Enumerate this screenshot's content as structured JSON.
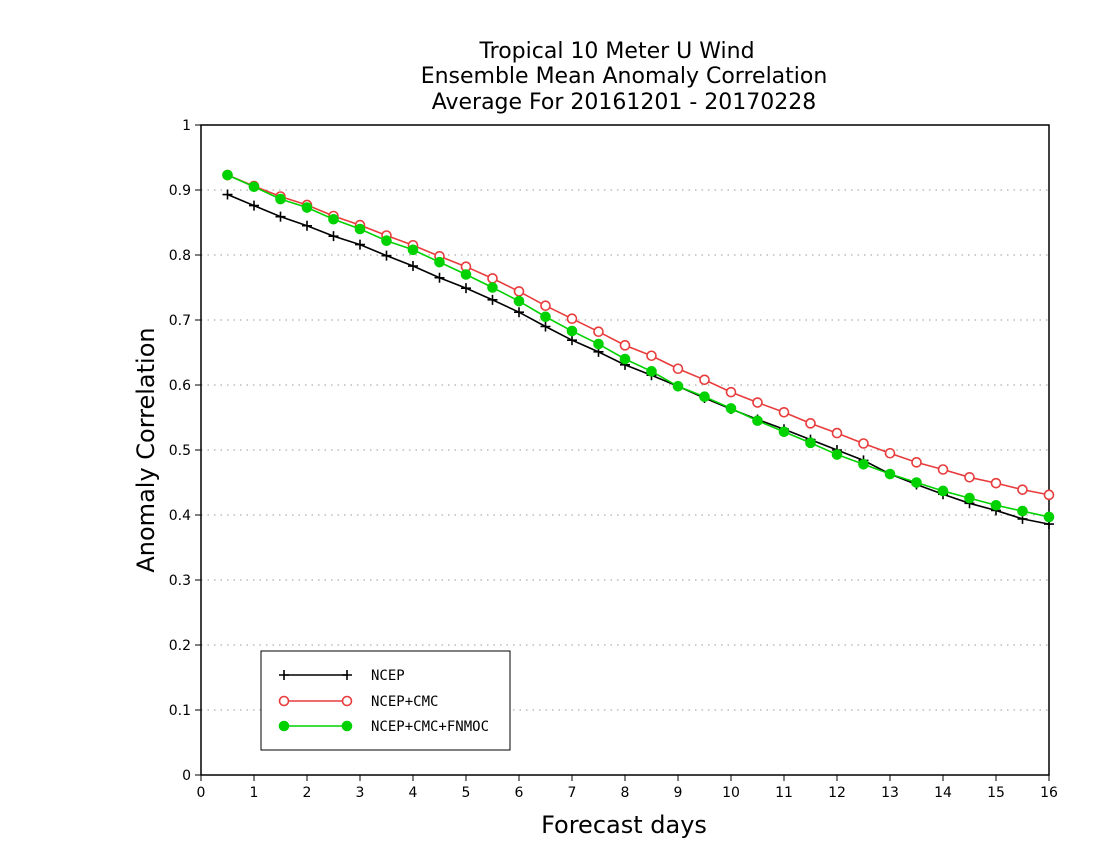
{
  "chart_data": {
    "type": "line",
    "title_lines": [
      "Tropical 10 Meter U Wind",
      "Ensemble Mean Anomaly Correlation",
      "Average For 20161201 - 20170228"
    ],
    "xlabel": "Forecast days",
    "ylabel": "Anomaly Correlation",
    "xlim": [
      0,
      16
    ],
    "ylim": [
      0,
      1
    ],
    "x_ticks": [
      "0",
      "1",
      "2",
      "3",
      "4",
      "5",
      "6",
      "7",
      "8",
      "9",
      "10",
      "11",
      "12",
      "13",
      "14",
      "15",
      "16"
    ],
    "y_ticks": [
      "0",
      "0.1",
      "0.2",
      "0.3",
      "0.4",
      "0.5",
      "0.6",
      "0.7",
      "0.8",
      "0.9",
      "1"
    ],
    "y_tick_values": [
      0,
      0.1,
      0.2,
      0.3,
      0.4,
      0.5,
      0.6,
      0.7,
      0.8,
      0.9,
      1
    ],
    "grid": "horizontal dotted",
    "legend_position": "bottom-left",
    "x": [
      0.5,
      1,
      1.5,
      2,
      2.5,
      3,
      3.5,
      4,
      4.5,
      5,
      5.5,
      6,
      6.5,
      7,
      7.5,
      8,
      8.5,
      9,
      9.5,
      10,
      10.5,
      11,
      11.5,
      12,
      12.5,
      13,
      13.5,
      14,
      14.5,
      15,
      15.5,
      16
    ],
    "series": [
      {
        "name": "NCEP",
        "color": "#000000",
        "marker": "plus",
        "values": [
          0.893,
          0.876,
          0.859,
          0.845,
          0.829,
          0.816,
          0.799,
          0.783,
          0.765,
          0.749,
          0.731,
          0.712,
          0.69,
          0.669,
          0.651,
          0.631,
          0.615,
          0.598,
          0.58,
          0.563,
          0.547,
          0.532,
          0.516,
          0.5,
          0.484,
          0.463,
          0.447,
          0.432,
          0.418,
          0.407,
          0.394,
          0.386
        ]
      },
      {
        "name": "NCEP+CMC",
        "color": "#e83c3c",
        "marker": "open-circle",
        "values": [
          0.923,
          0.906,
          0.89,
          0.877,
          0.86,
          0.846,
          0.83,
          0.815,
          0.798,
          0.782,
          0.764,
          0.744,
          0.722,
          0.702,
          0.682,
          0.661,
          0.645,
          0.625,
          0.608,
          0.589,
          0.573,
          0.558,
          0.541,
          0.526,
          0.51,
          0.495,
          0.481,
          0.47,
          0.458,
          0.449,
          0.439,
          0.431
        ]
      },
      {
        "name": "NCEP+CMC+FNMOC",
        "color": "#00d200",
        "marker": "filled-circle",
        "values": [
          0.923,
          0.905,
          0.886,
          0.873,
          0.855,
          0.84,
          0.822,
          0.808,
          0.789,
          0.77,
          0.75,
          0.729,
          0.705,
          0.683,
          0.663,
          0.64,
          0.621,
          0.598,
          0.582,
          0.564,
          0.545,
          0.528,
          0.511,
          0.493,
          0.478,
          0.463,
          0.45,
          0.437,
          0.426,
          0.415,
          0.406,
          0.397
        ]
      }
    ]
  }
}
